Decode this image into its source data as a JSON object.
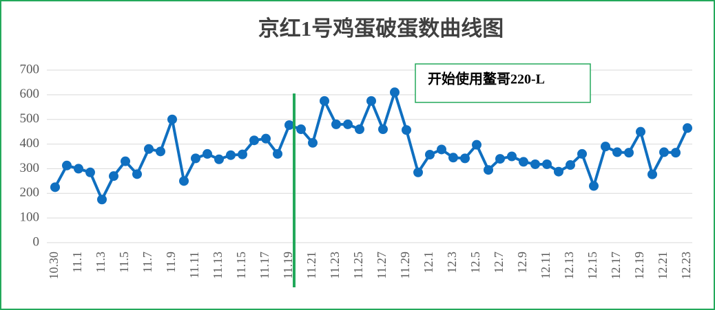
{
  "chart_data": {
    "type": "line",
    "title": "京红1号鸡蛋破蛋数曲线图",
    "annotation": "开始使用鳌哥220-L",
    "categories": [
      "10.30",
      null,
      "11.1",
      null,
      "11.3",
      null,
      "11.5",
      null,
      "11.7",
      null,
      "11.9",
      null,
      "11.11",
      null,
      "11.13",
      null,
      "11.15",
      null,
      "11.17",
      null,
      "11.19",
      null,
      "11.21",
      null,
      "11.23",
      null,
      "11.25",
      null,
      "11.27",
      null,
      "11.29",
      null,
      "12.1",
      null,
      "12.3",
      null,
      "12.5",
      null,
      "12.7",
      null,
      "12.9",
      null,
      "12.11",
      null,
      "12.13",
      null,
      "12.15",
      null,
      "12.17",
      null,
      "12.19",
      null,
      "12.21",
      null,
      "12.23"
    ],
    "series": [
      {
        "color": "#0f6fc0",
        "values": [
          225,
          313,
          300,
          285,
          175,
          270,
          330,
          278,
          380,
          370,
          500,
          250,
          342,
          360,
          338,
          355,
          358,
          415,
          422,
          360,
          477,
          460,
          405,
          575,
          480,
          480,
          460,
          575,
          460,
          610,
          457,
          285,
          357,
          378,
          345,
          342,
          397,
          295,
          340,
          350,
          328,
          318,
          318,
          288,
          315,
          360,
          230,
          390,
          367,
          365,
          450,
          277,
          367,
          365,
          465
        ]
      }
    ],
    "ylim": [
      0,
      700
    ],
    "yticks": [
      0,
      100,
      200,
      300,
      400,
      500,
      600,
      700
    ],
    "grid": true,
    "marker_color": "#22a85a"
  }
}
